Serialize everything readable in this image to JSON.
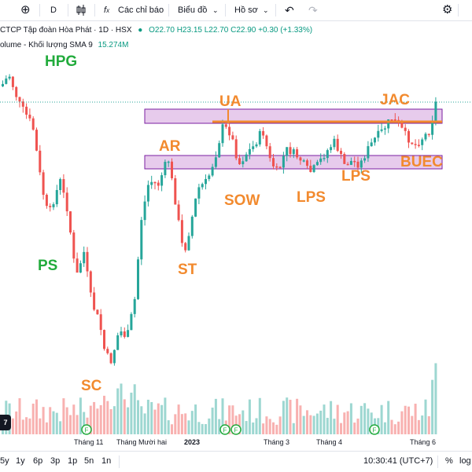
{
  "toolbar": {
    "add_symbol": "⊕",
    "interval": "D",
    "chart_type_icon": "candles-icon",
    "indicators_label": "Các chỉ báo",
    "chart_label": "Biểu đồ",
    "profile_label": "Hồ sơ",
    "undo": "↶",
    "redo": "↷",
    "settings": "⚙"
  },
  "legend": {
    "symbol": "CTCP Tập đoàn Hòa Phát · 1D · HSX",
    "open": "O22.70",
    "high": "H23.15",
    "low": "L22.70",
    "close": "C22.90",
    "change": "+0.30 (+1.33%)"
  },
  "volume_legend": {
    "label": "olume - Khối lượng SMA 9",
    "value": "15.274M"
  },
  "annotations": {
    "ticker": "HPG",
    "ps": "PS",
    "sc": "SC",
    "ar": "AR",
    "st": "ST",
    "ua": "UA",
    "sow": "SOW",
    "lps1": "LPS",
    "lps2": "LPS",
    "jac": "JAC",
    "buec": "BUEC"
  },
  "time_axis": {
    "labels": [
      "Tháng 11",
      "Tháng Mười hai",
      "2023",
      "Tháng 3",
      "Tháng 4",
      "Tháng 6"
    ]
  },
  "bottom_bar": {
    "ranges": [
      "5y",
      "1y",
      "6p",
      "3p",
      "1p",
      "5n",
      "1n"
    ],
    "time": "10:30:41 (UTC+7)",
    "percent": "%",
    "log": "log"
  },
  "colors": {
    "up": "#26a69a",
    "down": "#ef5350",
    "zone_fill": "#e1bee7",
    "zone_border": "#7b1fa2",
    "resistance": "#f28a2e",
    "price_line": "#26a69a"
  }
}
